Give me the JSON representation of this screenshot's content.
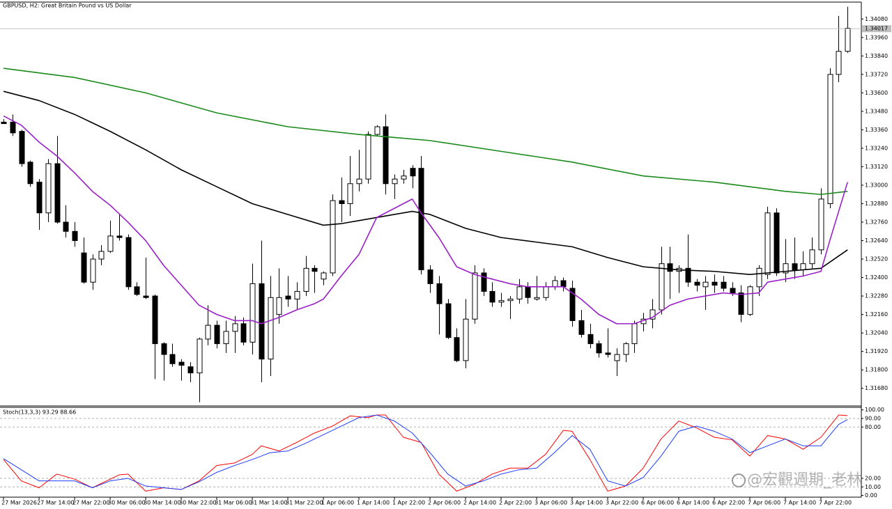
{
  "header": {
    "title": "GBPUSD, H2:  Great Britain Pound vs US Dollar"
  },
  "watermark": "@宏觀週期_老林",
  "chart_data": [
    {
      "type": "candlestick",
      "open": [
        1.3341,
        1.3341,
        1.3335,
        1.3315,
        1.3302,
        1.3282,
        1.3314,
        1.3276,
        1.327,
        1.3256,
        1.3237,
        1.3252,
        1.3257,
        1.3267,
        1.3266,
        1.3234,
        1.3228,
        1.3228,
        1.3197,
        1.319,
        1.3185,
        1.3182,
        1.3178,
        1.32,
        1.3209,
        1.3197,
        1.3205,
        1.321,
        1.3198,
        1.3236,
        1.3187,
        1.3216,
        1.3228,
        1.3226,
        1.3231,
        1.3246,
        1.3239,
        1.3243,
        1.329,
        1.3288,
        1.3301,
        1.3304,
        1.3333,
        1.3338,
        1.3301,
        1.3304,
        1.3311,
        1.3311,
        1.3245,
        1.3236,
        1.3223,
        1.3201,
        1.3186,
        1.3213,
        1.3243,
        1.3231,
        1.3224,
        1.3225,
        1.3226,
        1.3234,
        1.3226,
        1.3227,
        1.3234,
        1.3238,
        1.3233,
        1.3212,
        1.3203,
        1.3197,
        1.3191,
        1.3186,
        1.319,
        1.3197,
        1.321,
        1.3213,
        1.3219,
        1.3249,
        1.3244,
        1.3246,
        1.3237,
        1.3234,
        1.3237,
        1.3237,
        1.3233,
        1.323,
        1.3216,
        1.3234,
        1.3242,
        1.3282,
        1.3243,
        1.3249,
        1.3245,
        1.3249,
        1.3258,
        1.3288,
        1.3372,
        1.3387
      ],
      "high": [
        1.3343,
        1.3346,
        1.3336,
        1.3316,
        1.3304,
        1.3317,
        1.3332,
        1.3287,
        1.3276,
        1.3266,
        1.3255,
        1.3261,
        1.3277,
        1.3281,
        1.3268,
        1.3237,
        1.3253,
        1.3229,
        1.3198,
        1.3197,
        1.3187,
        1.3185,
        1.3201,
        1.3222,
        1.3212,
        1.3212,
        1.3215,
        1.3214,
        1.3249,
        1.3264,
        1.3241,
        1.3246,
        1.3241,
        1.3237,
        1.3254,
        1.3248,
        1.3244,
        1.3294,
        1.3305,
        1.3319,
        1.3323,
        1.3335,
        1.3339,
        1.3346,
        1.3307,
        1.331,
        1.3313,
        1.3319,
        1.3248,
        1.3241,
        1.3226,
        1.3207,
        1.3226,
        1.3248,
        1.3246,
        1.3237,
        1.323,
        1.3228,
        1.3239,
        1.3237,
        1.3241,
        1.3237,
        1.3241,
        1.324,
        1.3238,
        1.3219,
        1.321,
        1.3199,
        1.3207,
        1.3194,
        1.3198,
        1.3212,
        1.3217,
        1.3226,
        1.326,
        1.326,
        1.3248,
        1.3268,
        1.3239,
        1.3241,
        1.3242,
        1.3241,
        1.3237,
        1.3235,
        1.3235,
        1.3248,
        1.3286,
        1.3285,
        1.3265,
        1.3266,
        1.3257,
        1.3266,
        1.3298,
        1.3376,
        1.341,
        1.3416
      ],
      "low": [
        1.334,
        1.3332,
        1.3312,
        1.3299,
        1.3271,
        1.3276,
        1.3275,
        1.3266,
        1.326,
        1.3236,
        1.3232,
        1.3248,
        1.3256,
        1.3264,
        1.3232,
        1.3228,
        1.3226,
        1.3174,
        1.3173,
        1.3182,
        1.3173,
        1.3172,
        1.3159,
        1.3196,
        1.3194,
        1.3191,
        1.3191,
        1.3196,
        1.319,
        1.3172,
        1.3176,
        1.321,
        1.3221,
        1.3219,
        1.3228,
        1.323,
        1.3235,
        1.3241,
        1.3276,
        1.328,
        1.3296,
        1.3301,
        1.3332,
        1.3294,
        1.3291,
        1.3301,
        1.3298,
        1.3242,
        1.323,
        1.3203,
        1.32,
        1.3185,
        1.3181,
        1.321,
        1.3228,
        1.3221,
        1.3221,
        1.3213,
        1.3223,
        1.3223,
        1.3225,
        1.3225,
        1.3232,
        1.3231,
        1.3208,
        1.3201,
        1.3194,
        1.3188,
        1.3188,
        1.3176,
        1.3185,
        1.3191,
        1.3205,
        1.3207,
        1.3216,
        1.3226,
        1.323,
        1.3234,
        1.3231,
        1.3219,
        1.323,
        1.3231,
        1.3228,
        1.3211,
        1.3215,
        1.3228,
        1.3239,
        1.3241,
        1.3237,
        1.3239,
        1.3241,
        1.3246,
        1.3255,
        1.3285,
        1.3367,
        1.3386
      ],
      "close": [
        1.334,
        1.3334,
        1.3314,
        1.3301,
        1.3282,
        1.3314,
        1.3276,
        1.327,
        1.3264,
        1.3237,
        1.3252,
        1.3257,
        1.3267,
        1.3266,
        1.3234,
        1.3229,
        1.3227,
        1.3197,
        1.319,
        1.3184,
        1.3183,
        1.3178,
        1.32,
        1.3209,
        1.3197,
        1.3205,
        1.321,
        1.3198,
        1.3236,
        1.3187,
        1.3227,
        1.3227,
        1.3226,
        1.3231,
        1.3246,
        1.3244,
        1.3243,
        1.329,
        1.3288,
        1.3301,
        1.3304,
        1.3333,
        1.3338,
        1.3301,
        1.3304,
        1.3306,
        1.3306,
        1.3245,
        1.3236,
        1.3223,
        1.3201,
        1.3186,
        1.3213,
        1.3243,
        1.3231,
        1.3224,
        1.3225,
        1.3226,
        1.3234,
        1.3227,
        1.3227,
        1.3234,
        1.3238,
        1.3234,
        1.3212,
        1.3203,
        1.3197,
        1.3191,
        1.319,
        1.319,
        1.3197,
        1.321,
        1.3213,
        1.3219,
        1.3249,
        1.3244,
        1.3246,
        1.3237,
        1.3235,
        1.3237,
        1.3235,
        1.3233,
        1.323,
        1.3216,
        1.3234,
        1.3246,
        1.3282,
        1.3243,
        1.3249,
        1.3245,
        1.3249,
        1.3258,
        1.3291,
        1.3372,
        1.3387,
        1.3402
      ],
      "bull_color": "#ffffff",
      "bear_color": "#000000",
      "series": [
        {
          "color": "#1a8a1a",
          "x": [
            0,
            8,
            16,
            24,
            32,
            40,
            44,
            48,
            56,
            64,
            72,
            80,
            88,
            92,
            95
          ],
          "values": [
            1.3376,
            1.337,
            1.336,
            1.3347,
            1.3338,
            1.3333,
            1.3331,
            1.3329,
            1.3322,
            1.3315,
            1.3306,
            1.3302,
            1.3296,
            1.3294,
            1.3296
          ]
        },
        {
          "color": "#000000",
          "x": [
            0,
            4,
            8,
            12,
            16,
            20,
            24,
            28,
            32,
            36,
            38,
            40,
            44,
            46,
            48,
            52,
            56,
            60,
            64,
            68,
            72,
            76,
            80,
            84,
            88,
            92,
            95
          ],
          "values": [
            1.3361,
            1.3355,
            1.3346,
            1.3335,
            1.3323,
            1.331,
            1.3299,
            1.3288,
            1.3281,
            1.3274,
            1.3275,
            1.3277,
            1.3281,
            1.3283,
            1.3281,
            1.3272,
            1.3266,
            1.3263,
            1.326,
            1.3253,
            1.3247,
            1.3245,
            1.3244,
            1.3242,
            1.3244,
            1.3246,
            1.3258
          ]
        },
        {
          "color": "#9a1fc8",
          "x": [
            0,
            2,
            4,
            6,
            8,
            10,
            12,
            14,
            16,
            18,
            20,
            22,
            24,
            26,
            28,
            29,
            31,
            33,
            35,
            36,
            38,
            40,
            42,
            44,
            46,
            47,
            49,
            51,
            53,
            55,
            57,
            59,
            61,
            63,
            65,
            67,
            69,
            71,
            73,
            75,
            77,
            79,
            81,
            83,
            85,
            86,
            88,
            90,
            92,
            93,
            95
          ],
          "values": [
            1.3345,
            1.3339,
            1.3328,
            1.3319,
            1.3308,
            1.3296,
            1.3287,
            1.3276,
            1.3264,
            1.3248,
            1.3235,
            1.3222,
            1.3216,
            1.3212,
            1.3212,
            1.321,
            1.3214,
            1.3219,
            1.3223,
            1.3226,
            1.3241,
            1.3255,
            1.3279,
            1.3285,
            1.3291,
            1.3282,
            1.3266,
            1.3247,
            1.3242,
            1.3239,
            1.3236,
            1.3234,
            1.3234,
            1.3234,
            1.3226,
            1.3216,
            1.321,
            1.321,
            1.3214,
            1.3222,
            1.3226,
            1.3228,
            1.323,
            1.3229,
            1.323,
            1.3237,
            1.3239,
            1.3241,
            1.3244,
            1.3264,
            1.3302
          ]
        }
      ],
      "current_price": 1.34017,
      "xlim": [
        -0.4,
        96.55
      ],
      "ylim": [
        1.3157,
        1.3419
      ],
      "yticks": [
        {
          "value": 1.3408,
          "label": "1.34080"
        },
        {
          "value": 1.3396,
          "label": "1.33960"
        },
        {
          "value": 1.3384,
          "label": "1.33840"
        },
        {
          "value": 1.3372,
          "label": "1.33720"
        },
        {
          "value": 1.336,
          "label": "1.33600"
        },
        {
          "value": 1.3348,
          "label": "1.33480"
        },
        {
          "value": 1.3336,
          "label": "1.33360"
        },
        {
          "value": 1.3324,
          "label": "1.33240"
        },
        {
          "value": 1.3312,
          "label": "1.33120"
        },
        {
          "value": 1.33,
          "label": "1.33000"
        },
        {
          "value": 1.3288,
          "label": "1.32880"
        },
        {
          "value": 1.3276,
          "label": "1.32760"
        },
        {
          "value": 1.3264,
          "label": "1.32640"
        },
        {
          "value": 1.3252,
          "label": "1.32520"
        },
        {
          "value": 1.324,
          "label": "1.32400"
        },
        {
          "value": 1.3228,
          "label": "1.32280"
        },
        {
          "value": 1.3216,
          "label": "1.32160"
        },
        {
          "value": 1.3204,
          "label": "1.32040"
        },
        {
          "value": 1.3192,
          "label": "1.31920"
        },
        {
          "value": 1.318,
          "label": "1.31800"
        },
        {
          "value": 1.3168,
          "label": "1.31680"
        }
      ],
      "grid": false
    },
    {
      "type": "line",
      "title": "Stoch(13,3,3) 93.29 88.66",
      "series": [
        {
          "color": "#ff0000",
          "x": [
            0,
            2,
            4,
            5,
            6,
            8,
            10,
            12,
            13,
            14,
            16,
            18,
            20,
            22,
            24,
            26,
            28,
            29,
            31,
            33,
            35,
            37,
            39,
            41,
            42,
            43,
            45,
            47,
            49,
            51,
            53,
            55,
            57,
            59,
            61,
            63,
            64,
            66,
            68,
            70,
            72,
            74,
            76,
            78,
            80,
            82,
            84,
            86,
            88,
            90,
            92,
            94,
            95
          ],
          "values": [
            42,
            17,
            9,
            17,
            25,
            19,
            9,
            19,
            24,
            25,
            5,
            9,
            7,
            17,
            35,
            38,
            48,
            58,
            52,
            62,
            73,
            81,
            93,
            91,
            94,
            94,
            68,
            62,
            25,
            5,
            13,
            25,
            32,
            32,
            48,
            76,
            75,
            42,
            5,
            11,
            32,
            66,
            87,
            79,
            68,
            65,
            46,
            70,
            66,
            54,
            68,
            94,
            93.29
          ]
        },
        {
          "color": "#1e3cff",
          "x": [
            0,
            2,
            4,
            6,
            8,
            10,
            12,
            14,
            16,
            18,
            20,
            22,
            24,
            26,
            28,
            30,
            32,
            34,
            36,
            38,
            40,
            42,
            44,
            46,
            48,
            50,
            52,
            54,
            56,
            58,
            60,
            62,
            64,
            66,
            68,
            70,
            72,
            74,
            76,
            78,
            80,
            82,
            84,
            86,
            88,
            90,
            92,
            94,
            95
          ],
          "values": [
            43,
            30,
            17,
            17,
            17,
            9,
            17,
            20,
            11,
            9,
            7,
            16,
            27,
            35,
            42,
            50,
            52,
            61,
            71,
            81,
            91,
            94,
            87,
            73,
            50,
            25,
            11,
            17,
            25,
            30,
            32,
            50,
            70,
            54,
            17,
            11,
            21,
            46,
            75,
            81,
            75,
            66,
            50,
            58,
            66,
            58,
            58,
            83,
            88.66
          ]
        }
      ],
      "levels": [
        10,
        20,
        80,
        90
      ],
      "xlim": [
        -0.4,
        96.55
      ],
      "ylim": [
        -2,
        103
      ],
      "yticks": [
        {
          "value": 100,
          "label": "100.00"
        },
        {
          "value": 90,
          "label": "90.00"
        },
        {
          "value": 80,
          "label": "80.00"
        },
        {
          "value": 20,
          "label": "20.00"
        },
        {
          "value": 10,
          "label": "10.00"
        },
        {
          "value": 0,
          "label": "0.00"
        }
      ],
      "xticks": [
        {
          "value": 0,
          "label": "27 Mar 2026"
        },
        {
          "value": 4,
          "label": "27 Mar 14:00"
        },
        {
          "value": 8,
          "label": "27 Mar 22:00"
        },
        {
          "value": 12,
          "label": "30 Mar 06:00"
        },
        {
          "value": 16,
          "label": "30 Mar 14:00"
        },
        {
          "value": 20,
          "label": "30 Mar 22:00"
        },
        {
          "value": 24,
          "label": "31 Mar 06:00"
        },
        {
          "value": 28,
          "label": "31 Mar 14:00"
        },
        {
          "value": 32,
          "label": "31 Mar 22:00"
        },
        {
          "value": 36,
          "label": "1 Apr 06:00"
        },
        {
          "value": 40,
          "label": "1 Apr 14:00"
        },
        {
          "value": 44,
          "label": "1 Apr 22:00"
        },
        {
          "value": 48,
          "label": "2 Apr 06:00"
        },
        {
          "value": 52,
          "label": "2 Apr 14:00"
        },
        {
          "value": 56,
          "label": "2 Apr 22:00"
        },
        {
          "value": 60,
          "label": "3 Apr 06:00"
        },
        {
          "value": 64,
          "label": "3 Apr 14:00"
        },
        {
          "value": 68,
          "label": "3 Apr 22:00"
        },
        {
          "value": 72,
          "label": "6 Apr 06:00"
        },
        {
          "value": 76,
          "label": "6 Apr 14:00"
        },
        {
          "value": 80,
          "label": "6 Apr 22:00"
        },
        {
          "value": 84,
          "label": "7 Apr 06:00"
        },
        {
          "value": 88,
          "label": "7 Apr 14:00"
        },
        {
          "value": 92,
          "label": "7 Apr 22:00"
        }
      ],
      "grid": false
    }
  ]
}
